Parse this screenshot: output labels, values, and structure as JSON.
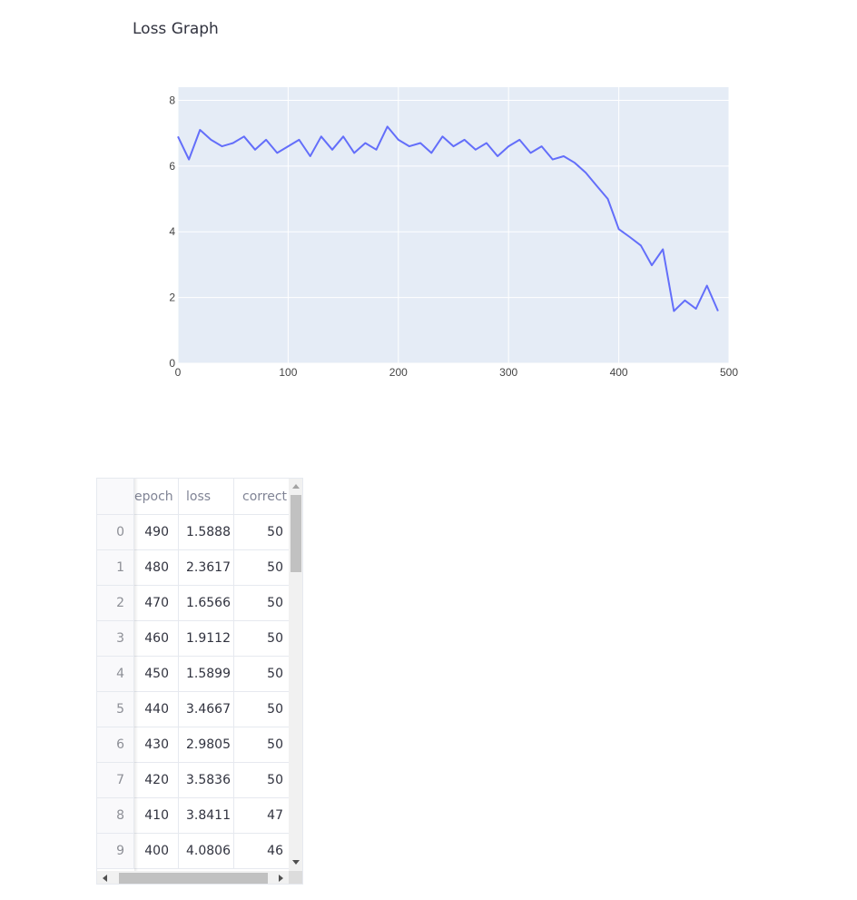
{
  "header": {
    "title": "Loss Graph"
  },
  "colors": {
    "line": "#636efa",
    "plot_bg": "#e5ecf6",
    "grid": "#ffffff"
  },
  "chart_data": {
    "type": "line",
    "title": "",
    "xlabel": "",
    "ylabel": "",
    "xlim": [
      0,
      500
    ],
    "ylim": [
      0,
      8.4
    ],
    "x_ticks": [
      0,
      100,
      200,
      300,
      400,
      500
    ],
    "y_ticks": [
      0,
      2,
      4,
      6,
      8
    ],
    "grid": true,
    "series": [
      {
        "x": [
          0,
          10,
          20,
          30,
          40,
          50,
          60,
          70,
          80,
          90,
          100,
          110,
          120,
          130,
          140,
          150,
          160,
          170,
          180,
          190,
          200,
          210,
          220,
          230,
          240,
          250,
          260,
          270,
          280,
          290,
          300,
          310,
          320,
          330,
          340,
          350,
          360,
          370,
          380,
          390,
          400,
          410,
          420,
          430,
          440,
          450,
          460,
          470,
          480,
          490
        ],
        "y": [
          6.9,
          6.2,
          7.1,
          6.8,
          6.6,
          6.7,
          6.9,
          6.5,
          6.8,
          6.4,
          6.6,
          6.8,
          6.3,
          6.9,
          6.5,
          6.9,
          6.4,
          6.7,
          6.5,
          7.2,
          6.8,
          6.6,
          6.7,
          6.4,
          6.9,
          6.6,
          6.8,
          6.5,
          6.7,
          6.3,
          6.6,
          6.8,
          6.4,
          6.6,
          6.2,
          6.3,
          6.1,
          5.8,
          5.4,
          5.0,
          4.0806,
          3.8411,
          3.5836,
          2.9805,
          3.4667,
          1.5899,
          1.9112,
          1.6566,
          2.3617,
          1.5888
        ]
      }
    ]
  },
  "table": {
    "columns": [
      "epoch",
      "loss",
      "correct"
    ],
    "rows": [
      {
        "index": "0",
        "epoch": "490",
        "loss": "1.5888",
        "correct": "50"
      },
      {
        "index": "1",
        "epoch": "480",
        "loss": "2.3617",
        "correct": "50"
      },
      {
        "index": "2",
        "epoch": "470",
        "loss": "1.6566",
        "correct": "50"
      },
      {
        "index": "3",
        "epoch": "460",
        "loss": "1.9112",
        "correct": "50"
      },
      {
        "index": "4",
        "epoch": "450",
        "loss": "1.5899",
        "correct": "50"
      },
      {
        "index": "5",
        "epoch": "440",
        "loss": "3.4667",
        "correct": "50"
      },
      {
        "index": "6",
        "epoch": "430",
        "loss": "2.9805",
        "correct": "50"
      },
      {
        "index": "7",
        "epoch": "420",
        "loss": "3.5836",
        "correct": "50"
      },
      {
        "index": "8",
        "epoch": "410",
        "loss": "3.8411",
        "correct": "47"
      },
      {
        "index": "9",
        "epoch": "400",
        "loss": "4.0806",
        "correct": "46"
      }
    ]
  }
}
